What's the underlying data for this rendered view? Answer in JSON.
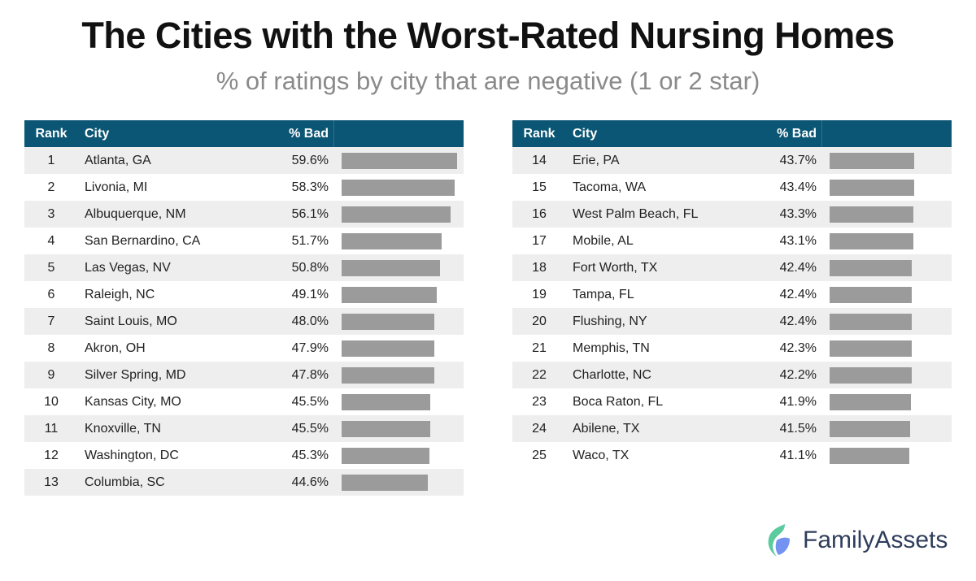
{
  "title": "The Cities with the Worst-Rated Nursing Homes",
  "subtitle": "% of ratings by city that are negative (1 or 2 star)",
  "brand": "FamilyAssets",
  "colors": {
    "header": "#0b5674",
    "bar": "#9b9b9b",
    "logo_green": "#5ccba0",
    "logo_blue": "#5b7ff0"
  },
  "chart_data": {
    "type": "table",
    "title": "The Cities with the Worst-Rated Nursing Homes",
    "subtitle": "% of ratings by city that are negative (1 or 2 star)",
    "columns": [
      "Rank",
      "City",
      "% Bad"
    ],
    "rows": [
      {
        "rank": "1",
        "city": "Atlanta, GA",
        "pct": "59.6%",
        "value": 59.6
      },
      {
        "rank": "2",
        "city": "Livonia, MI",
        "pct": "58.3%",
        "value": 58.3
      },
      {
        "rank": "3",
        "city": "Albuquerque, NM",
        "pct": "56.1%",
        "value": 56.1
      },
      {
        "rank": "4",
        "city": "San Bernardino, CA",
        "pct": "51.7%",
        "value": 51.7
      },
      {
        "rank": "5",
        "city": "Las Vegas, NV",
        "pct": "50.8%",
        "value": 50.8
      },
      {
        "rank": "6",
        "city": "Raleigh, NC",
        "pct": "49.1%",
        "value": 49.1
      },
      {
        "rank": "7",
        "city": "Saint Louis, MO",
        "pct": "48.0%",
        "value": 48.0
      },
      {
        "rank": "8",
        "city": "Akron, OH",
        "pct": "47.9%",
        "value": 47.9
      },
      {
        "rank": "9",
        "city": "Silver Spring, MD",
        "pct": "47.8%",
        "value": 47.8
      },
      {
        "rank": "10",
        "city": "Kansas City, MO",
        "pct": "45.5%",
        "value": 45.5
      },
      {
        "rank": "11",
        "city": "Knoxville, TN",
        "pct": "45.5%",
        "value": 45.5
      },
      {
        "rank": "12",
        "city": "Washington, DC",
        "pct": "45.3%",
        "value": 45.3
      },
      {
        "rank": "13",
        "city": "Columbia, SC",
        "pct": "44.6%",
        "value": 44.6
      },
      {
        "rank": "14",
        "city": "Erie, PA",
        "pct": "43.7%",
        "value": 43.7
      },
      {
        "rank": "15",
        "city": "Tacoma, WA",
        "pct": "43.4%",
        "value": 43.4
      },
      {
        "rank": "16",
        "city": "West Palm Beach, FL",
        "pct": "43.3%",
        "value": 43.3
      },
      {
        "rank": "17",
        "city": "Mobile, AL",
        "pct": "43.1%",
        "value": 43.1
      },
      {
        "rank": "18",
        "city": "Fort Worth, TX",
        "pct": "42.4%",
        "value": 42.4
      },
      {
        "rank": "19",
        "city": "Tampa, FL",
        "pct": "42.4%",
        "value": 42.4
      },
      {
        "rank": "20",
        "city": "Flushing, NY",
        "pct": "42.4%",
        "value": 42.4
      },
      {
        "rank": "21",
        "city": "Memphis, TN",
        "pct": "42.3%",
        "value": 42.3
      },
      {
        "rank": "22",
        "city": "Charlotte, NC",
        "pct": "42.2%",
        "value": 42.2
      },
      {
        "rank": "23",
        "city": "Boca Raton, FL",
        "pct": "41.9%",
        "value": 41.9
      },
      {
        "rank": "24",
        "city": "Abilene, TX",
        "pct": "41.5%",
        "value": 41.5
      },
      {
        "rank": "25",
        "city": "Waco, TX",
        "pct": "41.1%",
        "value": 41.1
      }
    ]
  }
}
